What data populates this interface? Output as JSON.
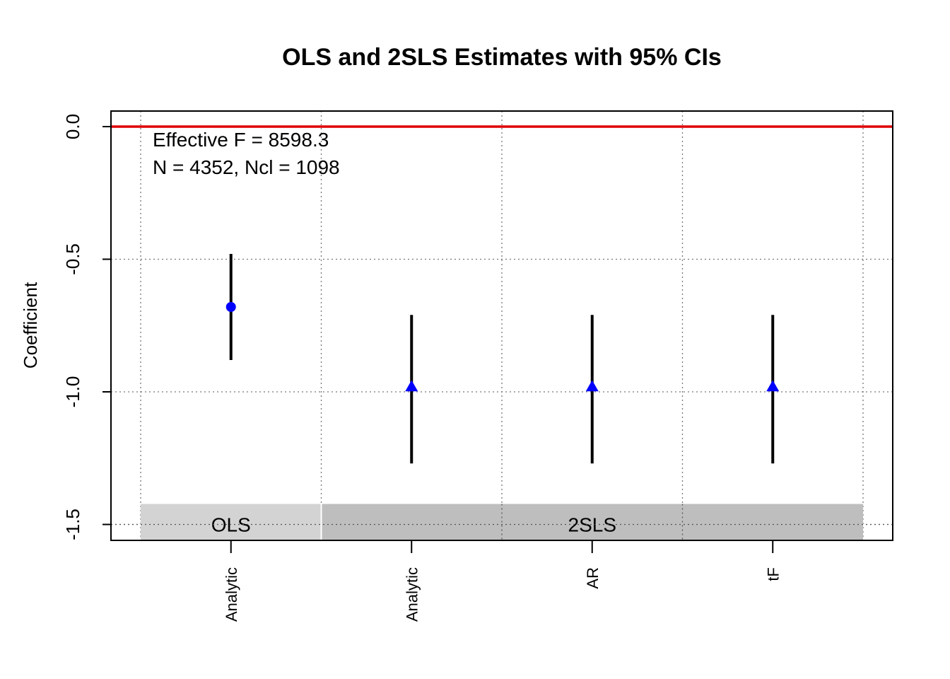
{
  "chart_data": {
    "type": "errorbar",
    "title": "OLS and 2SLS Estimates with 95% CIs",
    "xlabel": "",
    "ylabel": "Coefficient",
    "ylim": [
      -1.5,
      0.0
    ],
    "yticks": [
      "0.0",
      "-0.5",
      "-1.0",
      "-1.5"
    ],
    "ytick_values": [
      0.0,
      -0.5,
      -1.0,
      -1.5
    ],
    "grid": true,
    "reference_line": {
      "y": 0.0,
      "color": "#e00000"
    },
    "annotations": [
      "Effective F = 8598.3",
      "N = 4352, Ncl = 1098"
    ],
    "categories": [
      "Analytic",
      "Analytic",
      "AR",
      "tF"
    ],
    "groups": [
      {
        "label": "OLS",
        "span": [
          0,
          0
        ],
        "color": "#d3d3d3"
      },
      {
        "label": "2SLS",
        "span": [
          1,
          3
        ],
        "color": "#bebebe"
      }
    ],
    "points": [
      {
        "estimate": -0.68,
        "lower": -0.88,
        "upper": -0.48,
        "marker": "circle"
      },
      {
        "estimate": -0.98,
        "lower": -1.27,
        "upper": -0.71,
        "marker": "triangle"
      },
      {
        "estimate": -0.98,
        "lower": -1.27,
        "upper": -0.71,
        "marker": "triangle"
      },
      {
        "estimate": -0.98,
        "lower": -1.27,
        "upper": -0.71,
        "marker": "triangle"
      }
    ],
    "marker_color": "#0000ff",
    "errorbar_color": "#000000"
  }
}
